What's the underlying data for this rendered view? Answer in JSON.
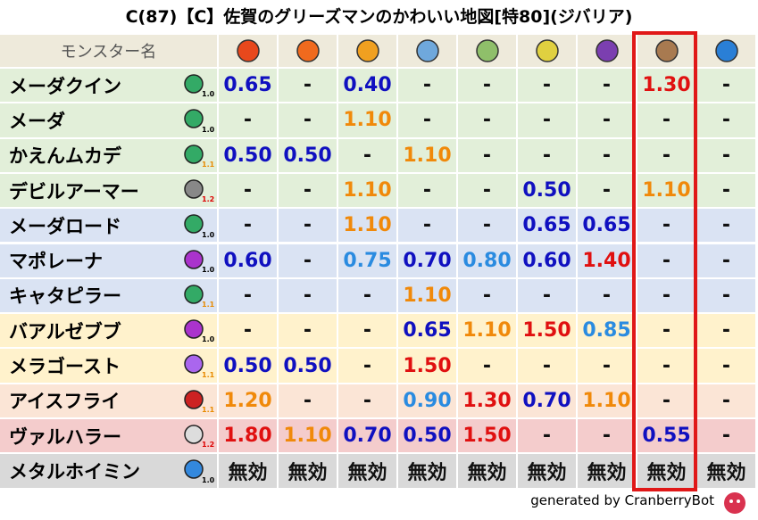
{
  "title": "C(87)【C】佐賀のグリーズマンのかわいい地図[特80](ジバリア)",
  "header": {
    "name_label": "モンスター名"
  },
  "rows": [
    {
      "name": "メーダクイン",
      "tag": "1.0",
      "cells": [
        "0.65",
        "-",
        "0.40",
        "-",
        "-",
        "-",
        "-",
        "1.30",
        "-"
      ]
    },
    {
      "name": "メーダ",
      "tag": "1.0",
      "cells": [
        "-",
        "-",
        "1.10",
        "-",
        "-",
        "-",
        "-",
        "-",
        "-"
      ]
    },
    {
      "name": "かえんムカデ",
      "tag": "1.1",
      "cells": [
        "0.50",
        "0.50",
        "-",
        "1.10",
        "-",
        "-",
        "-",
        "-",
        "-"
      ]
    },
    {
      "name": "デビルアーマー",
      "tag": "1.2",
      "cells": [
        "-",
        "-",
        "1.10",
        "-",
        "-",
        "0.50",
        "-",
        "1.10",
        "-"
      ]
    },
    {
      "name": "メーダロード",
      "tag": "1.0",
      "cells": [
        "-",
        "-",
        "1.10",
        "-",
        "-",
        "0.65",
        "0.65",
        "-",
        "-"
      ]
    },
    {
      "name": "マポレーナ",
      "tag": "1.0",
      "cells": [
        "0.60",
        "-",
        "0.75",
        "0.70",
        "0.80",
        "0.60",
        "1.40",
        "-",
        "-"
      ]
    },
    {
      "name": "キャタピラー",
      "tag": "1.1",
      "cells": [
        "-",
        "-",
        "-",
        "1.10",
        "-",
        "-",
        "-",
        "-",
        "-"
      ]
    },
    {
      "name": "バアルゼブブ",
      "tag": "1.0",
      "cells": [
        "-",
        "-",
        "-",
        "0.65",
        "1.10",
        "1.50",
        "0.85",
        "-",
        "-"
      ]
    },
    {
      "name": "メラゴースト",
      "tag": "1.1",
      "cells": [
        "0.50",
        "0.50",
        "-",
        "1.50",
        "-",
        "-",
        "-",
        "-",
        "-"
      ]
    },
    {
      "name": "アイスフライ",
      "tag": "1.1",
      "cells": [
        "1.20",
        "-",
        "-",
        "0.90",
        "1.30",
        "0.70",
        "1.10",
        "-",
        "-"
      ]
    },
    {
      "name": "ヴァルハラー",
      "tag": "1.2",
      "cells": [
        "1.80",
        "1.10",
        "0.70",
        "0.50",
        "1.50",
        "-",
        "-",
        "0.55",
        "-"
      ]
    },
    {
      "name": "メタルホイミン",
      "tag": "1.0",
      "cells": [
        "無効",
        "無効",
        "無効",
        "無効",
        "無効",
        "無効",
        "無効",
        "無効",
        "無効"
      ]
    }
  ],
  "footer": "generated by CranberryBot"
}
